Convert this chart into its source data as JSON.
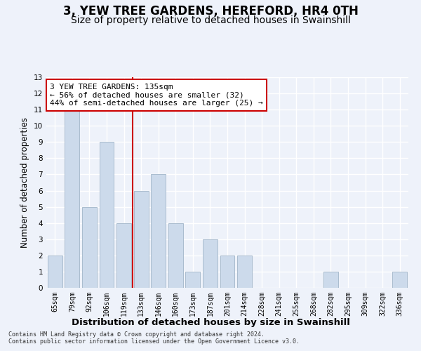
{
  "title": "3, YEW TREE GARDENS, HEREFORD, HR4 0TH",
  "subtitle": "Size of property relative to detached houses in Swainshill",
  "xlabel": "Distribution of detached houses by size in Swainshill",
  "ylabel": "Number of detached properties",
  "categories": [
    "65sqm",
    "79sqm",
    "92sqm",
    "106sqm",
    "119sqm",
    "133sqm",
    "146sqm",
    "160sqm",
    "173sqm",
    "187sqm",
    "201sqm",
    "214sqm",
    "228sqm",
    "241sqm",
    "255sqm",
    "268sqm",
    "282sqm",
    "295sqm",
    "309sqm",
    "322sqm",
    "336sqm"
  ],
  "values": [
    2,
    11,
    5,
    9,
    4,
    6,
    7,
    4,
    1,
    3,
    2,
    2,
    0,
    0,
    0,
    0,
    1,
    0,
    0,
    0,
    1
  ],
  "bar_color": "#ccdaeb",
  "bar_edge_color": "#aabcce",
  "bar_width": 0.85,
  "vline_x_idx": 4.5,
  "vline_color": "#cc0000",
  "annotation_line1": "3 YEW TREE GARDENS: 135sqm",
  "annotation_line2": "← 56% of detached houses are smaller (32)",
  "annotation_line3": "44% of semi-detached houses are larger (25) →",
  "annotation_box_color": "#ffffff",
  "annotation_box_edgecolor": "#cc0000",
  "ylim_max": 13,
  "yticks": [
    0,
    1,
    2,
    3,
    4,
    5,
    6,
    7,
    8,
    9,
    10,
    11,
    12,
    13
  ],
  "footer1": "Contains HM Land Registry data © Crown copyright and database right 2024.",
  "footer2": "Contains public sector information licensed under the Open Government Licence v3.0.",
  "background_color": "#eef2fa",
  "grid_color": "#ffffff",
  "title_fontsize": 12,
  "subtitle_fontsize": 10,
  "ylabel_fontsize": 8.5,
  "xlabel_fontsize": 9.5,
  "tick_fontsize": 7,
  "annotation_fontsize": 8,
  "footer_fontsize": 6
}
